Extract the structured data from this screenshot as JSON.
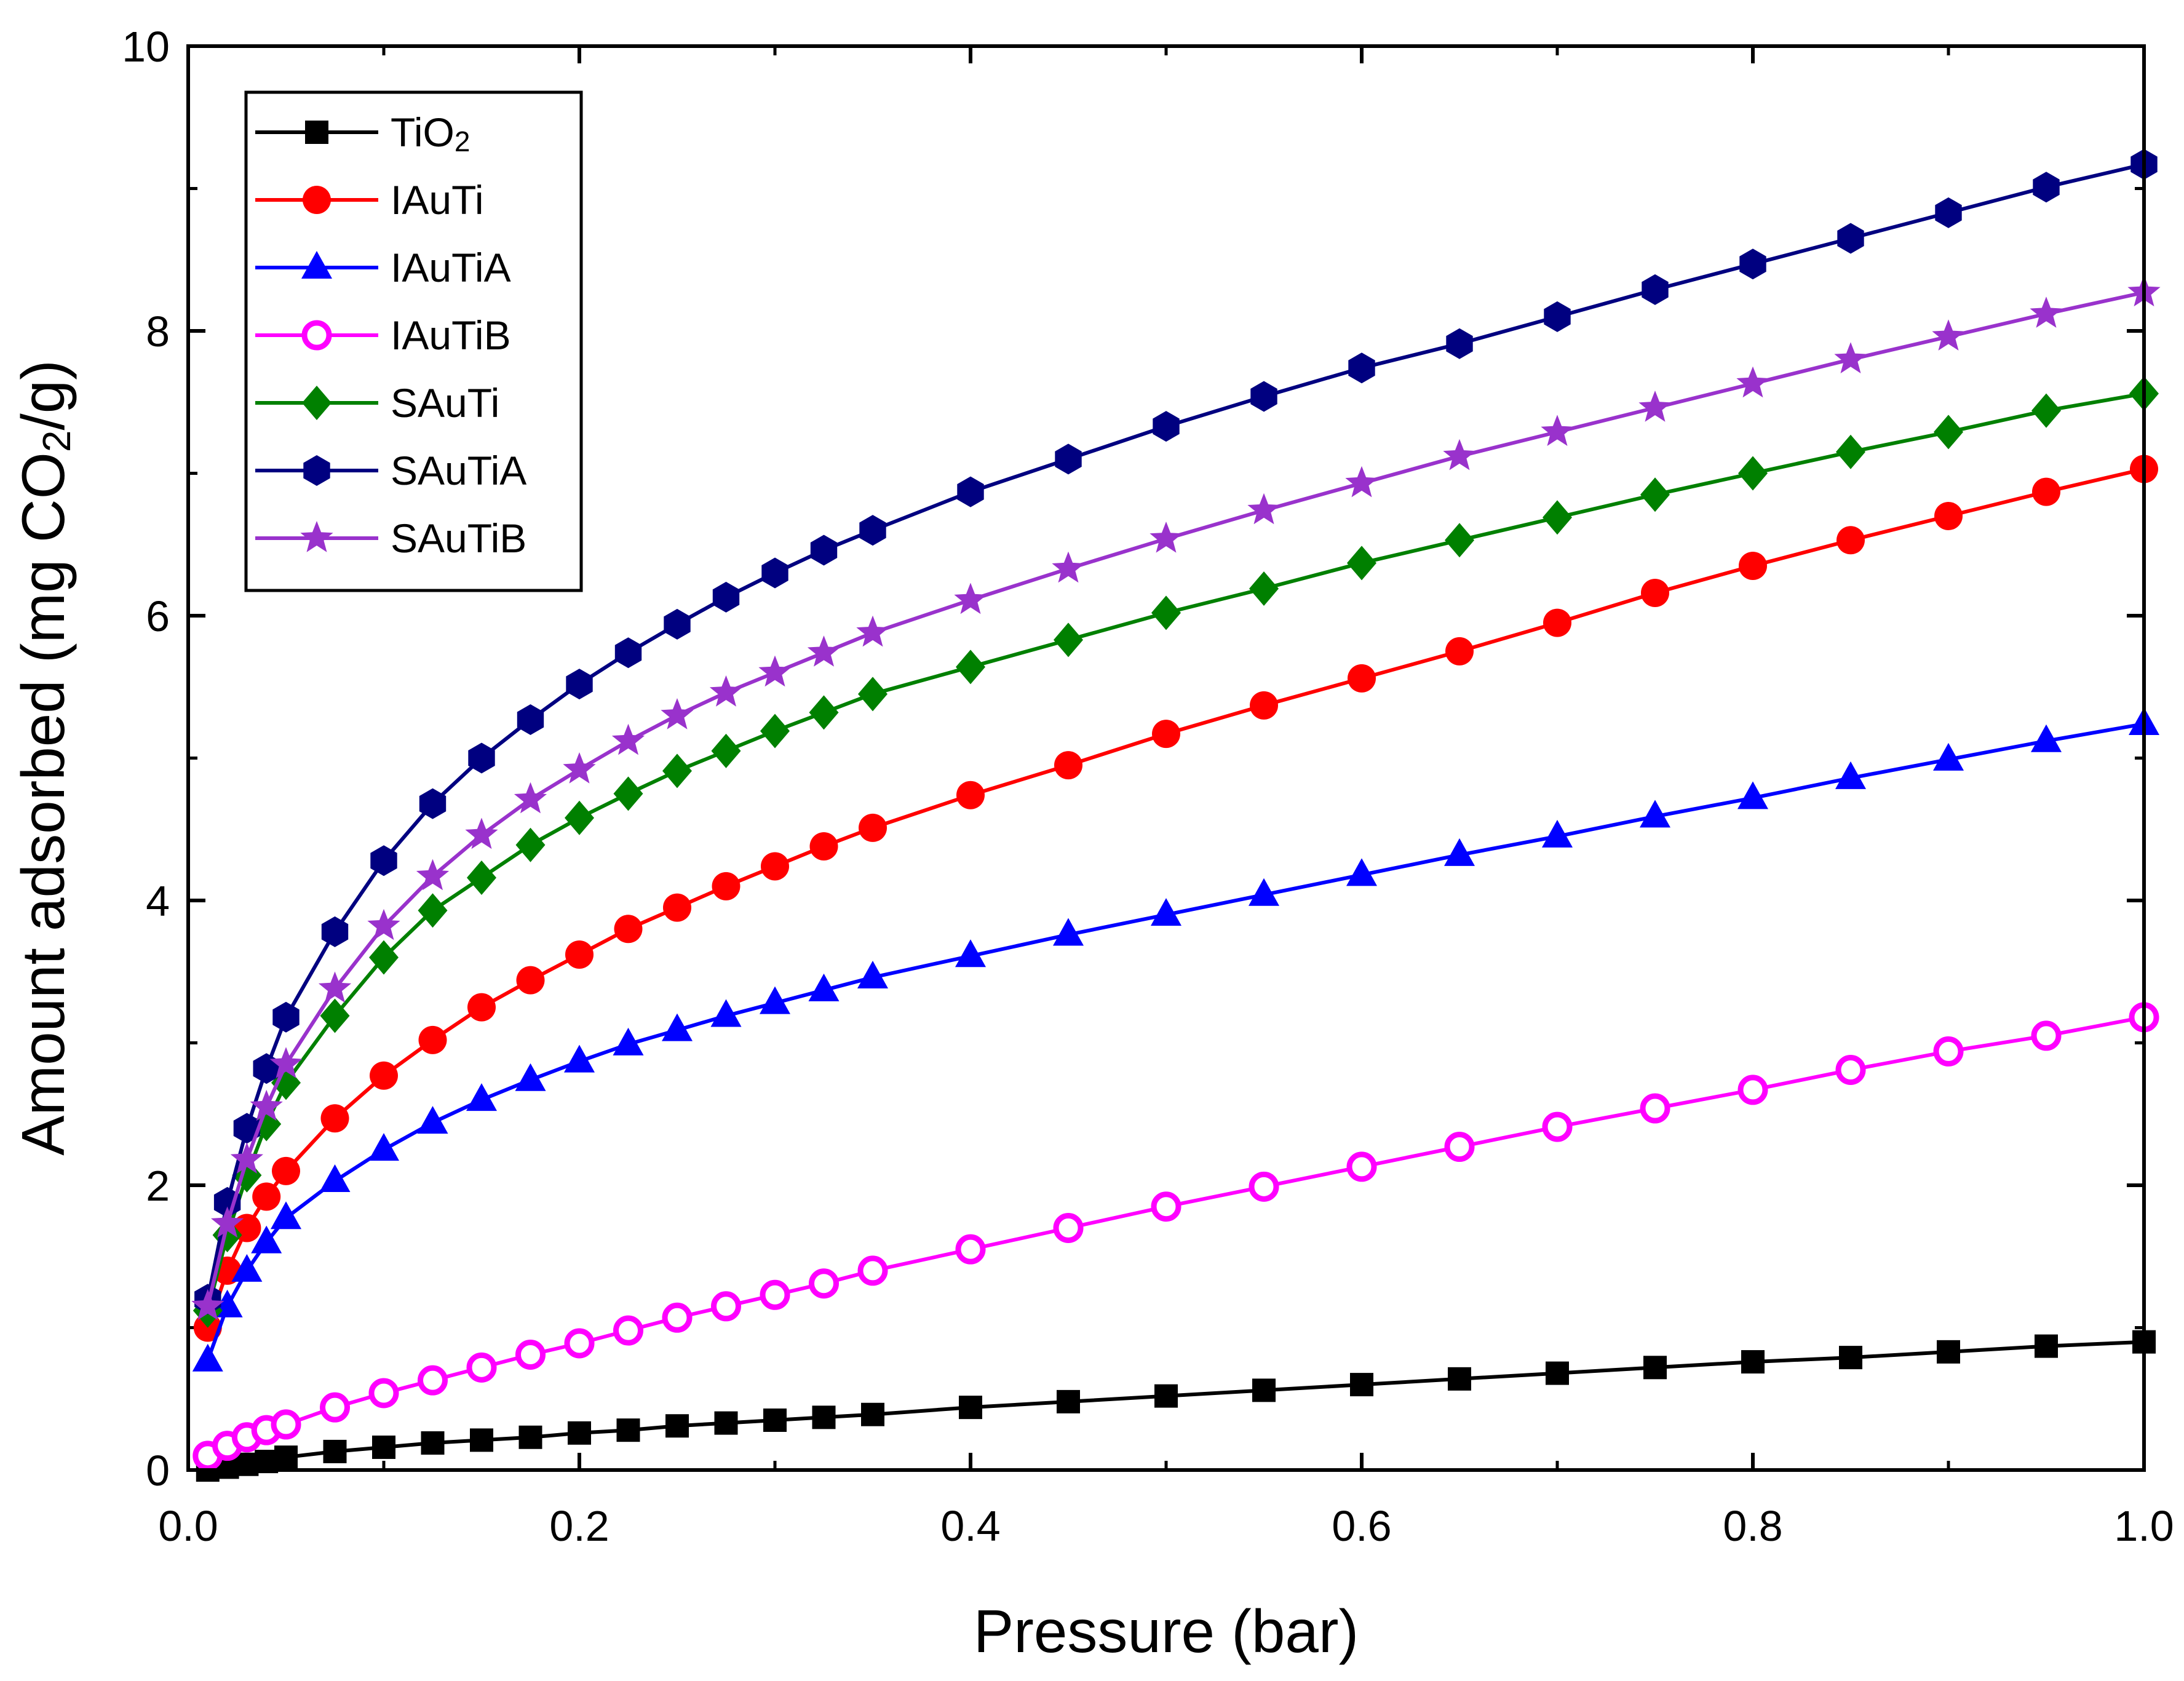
{
  "chart_data": {
    "type": "line",
    "title": "",
    "xlabel": "Pressure (bar)",
    "ylabel": "Amount adsorbed (mg CO2/g)",
    "ylabel_parts": {
      "before": "Amount adsorbed (mg CO",
      "sub": "2",
      "after": "/g)"
    },
    "xlim": [
      0.0,
      1.0
    ],
    "ylim": [
      0,
      10
    ],
    "xticks": [
      "0.0",
      "0.2",
      "0.4",
      "0.6",
      "0.8",
      "1.0"
    ],
    "yticks": [
      "0",
      "2",
      "4",
      "6",
      "8",
      "10"
    ],
    "legend_position": "top-left",
    "x": [
      0.01,
      0.02,
      0.03,
      0.04,
      0.05,
      0.075,
      0.1,
      0.125,
      0.15,
      0.175,
      0.2,
      0.225,
      0.25,
      0.275,
      0.3,
      0.325,
      0.35,
      0.4,
      0.45,
      0.5,
      0.55,
      0.6,
      0.65,
      0.7,
      0.75,
      0.8,
      0.85,
      0.9,
      0.95,
      1.0
    ],
    "series": [
      {
        "name": "TiO2",
        "label_main": "TiO",
        "label_sub": "2",
        "color": "#000000",
        "marker": "square",
        "values": [
          0.0,
          0.02,
          0.04,
          0.06,
          0.09,
          0.13,
          0.16,
          0.19,
          0.21,
          0.23,
          0.26,
          0.28,
          0.31,
          0.33,
          0.35,
          0.37,
          0.39,
          0.44,
          0.48,
          0.52,
          0.56,
          0.6,
          0.64,
          0.68,
          0.72,
          0.76,
          0.79,
          0.83,
          0.87,
          0.9
        ]
      },
      {
        "name": "IAuTi",
        "label_main": "IAuTi",
        "label_sub": "",
        "color": "#ff0000",
        "marker": "circle",
        "values": [
          1.0,
          1.4,
          1.7,
          1.92,
          2.1,
          2.47,
          2.77,
          3.02,
          3.25,
          3.44,
          3.62,
          3.8,
          3.95,
          4.1,
          4.24,
          4.38,
          4.51,
          4.74,
          4.95,
          5.17,
          5.37,
          5.56,
          5.75,
          5.95,
          6.16,
          6.35,
          6.53,
          6.7,
          6.87,
          7.03
        ]
      },
      {
        "name": "IAuTiA",
        "label_main": "IAuTiA",
        "label_sub": "",
        "color": "#0000ff",
        "marker": "triangle",
        "values": [
          0.77,
          1.15,
          1.4,
          1.6,
          1.77,
          2.03,
          2.25,
          2.44,
          2.6,
          2.74,
          2.87,
          2.99,
          3.09,
          3.19,
          3.28,
          3.37,
          3.46,
          3.61,
          3.76,
          3.9,
          4.04,
          4.18,
          4.32,
          4.45,
          4.59,
          4.72,
          4.86,
          4.99,
          5.12,
          5.24
        ]
      },
      {
        "name": "IAuTiB",
        "label_main": "IAuTiB",
        "label_sub": "",
        "color": "#ff00ff",
        "marker": "open-circle",
        "values": [
          0.1,
          0.17,
          0.23,
          0.28,
          0.32,
          0.44,
          0.54,
          0.63,
          0.72,
          0.81,
          0.89,
          0.98,
          1.07,
          1.15,
          1.23,
          1.31,
          1.4,
          1.55,
          1.7,
          1.85,
          1.99,
          2.13,
          2.27,
          2.41,
          2.54,
          2.67,
          2.81,
          2.94,
          3.05,
          3.18
        ]
      },
      {
        "name": "SAuTi",
        "label_main": "SAuTi",
        "label_sub": "",
        "color": "#008000",
        "marker": "diamond",
        "values": [
          1.12,
          1.65,
          2.07,
          2.43,
          2.72,
          3.19,
          3.6,
          3.93,
          4.16,
          4.39,
          4.58,
          4.75,
          4.91,
          5.05,
          5.19,
          5.32,
          5.45,
          5.64,
          5.83,
          6.02,
          6.19,
          6.37,
          6.53,
          6.69,
          6.85,
          7.0,
          7.15,
          7.29,
          7.44,
          7.56
        ]
      },
      {
        "name": "SAuTiA",
        "label_main": "SAuTiA",
        "label_sub": "",
        "color": "#000080",
        "marker": "hexagon",
        "values": [
          1.2,
          1.88,
          2.4,
          2.82,
          3.18,
          3.78,
          4.28,
          4.68,
          5.0,
          5.27,
          5.52,
          5.74,
          5.94,
          6.13,
          6.3,
          6.46,
          6.6,
          6.87,
          7.1,
          7.33,
          7.54,
          7.74,
          7.91,
          8.1,
          8.29,
          8.47,
          8.65,
          8.83,
          9.01,
          9.17
        ]
      },
      {
        "name": "SAuTiB",
        "label_main": "SAuTiB",
        "label_sub": "",
        "color": "#9932cc",
        "marker": "star",
        "values": [
          1.15,
          1.73,
          2.18,
          2.55,
          2.85,
          3.38,
          3.82,
          4.17,
          4.46,
          4.71,
          4.92,
          5.12,
          5.3,
          5.46,
          5.6,
          5.74,
          5.88,
          6.11,
          6.33,
          6.54,
          6.74,
          6.93,
          7.12,
          7.29,
          7.46,
          7.63,
          7.8,
          7.96,
          8.12,
          8.27
        ]
      }
    ]
  }
}
